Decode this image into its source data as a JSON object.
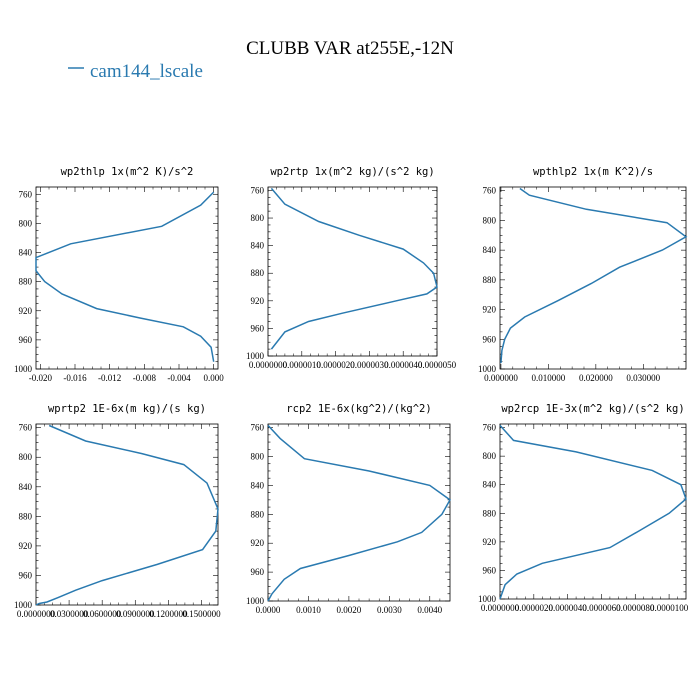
{
  "figure": {
    "title": "CLUBB VAR at255E,-12N",
    "legend": [
      {
        "label": "cam144_lscale",
        "color": "#2a7ab0"
      }
    ]
  },
  "chart_data": [
    {
      "type": "line",
      "title": "wp2thlp  1x(m^2 K)/s^2",
      "xlim": [
        -0.0205,
        0.0005
      ],
      "ylim": [
        1000,
        750
      ],
      "y_ticks": [
        760,
        800,
        840,
        880,
        920,
        960,
        1000
      ],
      "x_ticks": [
        -0.02,
        -0.016,
        -0.012,
        -0.008,
        -0.004,
        0.0
      ],
      "x_tick_labels": [
        "-0.020",
        "-0.016",
        "-0.012",
        "-0.008",
        "-0.004",
        "0.000"
      ],
      "series": [
        {
          "x": [
            0.0,
            -0.0015,
            -0.006,
            -0.0165,
            -0.0205,
            -0.0205,
            -0.0195,
            -0.0175,
            -0.0135,
            -0.0085,
            -0.0035,
            -0.0015,
            -0.0003,
            0.0
          ],
          "y": [
            757,
            775,
            804,
            828,
            847,
            865,
            880,
            897,
            917,
            930,
            942,
            955,
            970,
            990
          ]
        }
      ]
    },
    {
      "type": "line",
      "title": "wp2rtp  1x(m^2 kg)/(s^2 kg)",
      "xlim": [
        0,
        5e-06
      ],
      "ylim": [
        1000,
        755
      ],
      "y_ticks": [
        760,
        800,
        840,
        880,
        920,
        960,
        1000
      ],
      "x_ticks": [
        0,
        1e-06,
        2e-06,
        3e-06,
        4e-06,
        5e-06
      ],
      "x_tick_labels": [
        "0.0000000",
        "0.0000010",
        "0.0000020",
        "0.0000030",
        "0.0000040",
        "0.0000050"
      ],
      "series": [
        {
          "x": [
            1e-07,
            5e-07,
            1.5e-06,
            2.7e-06,
            4e-06,
            4.6e-06,
            4.9e-06,
            5e-06,
            4.7e-06,
            3.8e-06,
            2.2e-06,
            1.2e-06,
            5e-07,
            1e-07
          ],
          "y": [
            757,
            780,
            805,
            825,
            845,
            865,
            880,
            900,
            910,
            920,
            938,
            950,
            965,
            990
          ]
        }
      ]
    },
    {
      "type": "line",
      "title": "wpthlp2  1x(m K^2)/s",
      "xlim": [
        -0.0002,
        0.039
      ],
      "ylim": [
        1000,
        755
      ],
      "y_ticks": [
        760,
        800,
        840,
        880,
        920,
        960,
        1000
      ],
      "x_ticks": [
        0,
        0.01,
        0.02,
        0.03
      ],
      "x_tick_labels": [
        "0.000000",
        "0.010000",
        "0.020000",
        "0.030000"
      ],
      "series": [
        {
          "x": [
            0.004,
            0.006,
            0.018,
            0.035,
            0.039,
            0.034,
            0.025,
            0.019,
            0.012,
            0.005,
            0.002,
            0.0008,
            0.0002,
            0.0
          ],
          "y": [
            757,
            766,
            785,
            803,
            822,
            840,
            863,
            885,
            908,
            930,
            945,
            960,
            975,
            992
          ]
        }
      ]
    },
    {
      "type": "line",
      "title": "wprtp2  1E-6x(m kg)/(s kg)",
      "xlim": [
        0,
        0.165
      ],
      "ylim": [
        1000,
        755
      ],
      "y_ticks": [
        760,
        800,
        840,
        880,
        920,
        960,
        1000
      ],
      "x_ticks": [
        0,
        0.03,
        0.06,
        0.09,
        0.12,
        0.15
      ],
      "x_tick_labels": [
        "0.0000000",
        "0.0300000",
        "0.0600000",
        "0.0900000",
        "0.1200000",
        "0.1500000"
      ],
      "series": [
        {
          "x": [
            0.012,
            0.045,
            0.096,
            0.134,
            0.155,
            0.165,
            0.163,
            0.151,
            0.11,
            0.06,
            0.036,
            0.02,
            0.01,
            0.003,
            0.0
          ],
          "y": [
            757,
            778,
            795,
            810,
            835,
            870,
            900,
            925,
            945,
            967,
            980,
            990,
            996,
            998,
            1000
          ]
        }
      ]
    },
    {
      "type": "line",
      "title": "rcp2  1E-6x(kg^2)/(kg^2)",
      "xlim": [
        0,
        0.0045
      ],
      "ylim": [
        1000,
        755
      ],
      "y_ticks": [
        760,
        800,
        840,
        880,
        920,
        960,
        1000
      ],
      "x_ticks": [
        0,
        0.001,
        0.002,
        0.003,
        0.004
      ],
      "x_tick_labels": [
        "0.0000",
        "0.0010",
        "0.0020",
        "0.0030",
        "0.0040"
      ],
      "series": [
        {
          "x": [
            0.0,
            0.0003,
            0.0009,
            0.0025,
            0.004,
            0.0045,
            0.0043,
            0.0038,
            0.0032,
            0.002,
            0.0008,
            0.0004,
            0.0001,
            0.0
          ],
          "y": [
            757,
            775,
            803,
            820,
            840,
            860,
            880,
            905,
            918,
            937,
            955,
            970,
            990,
            1000
          ]
        }
      ]
    },
    {
      "type": "line",
      "title": "wp2rcp  1E-3x(m^2 kg)/(s^2 kg)",
      "xlim": [
        0,
        1.1e-05
      ],
      "ylim": [
        1000,
        755
      ],
      "y_ticks": [
        760,
        800,
        840,
        880,
        920,
        960,
        1000
      ],
      "x_ticks": [
        0,
        2e-06,
        4e-06,
        6e-06,
        8e-06,
        1e-05
      ],
      "x_tick_labels": [
        "0.0000000",
        "0.0000020",
        "0.0000040",
        "0.0000060",
        "0.0000080",
        "0.0000100"
      ],
      "series": [
        {
          "x": [
            0.0,
            8e-07,
            4.5e-06,
            9e-06,
            1.07e-05,
            1.1e-05,
            1e-05,
            8.2e-06,
            6.5e-06,
            2.5e-06,
            1e-06,
            3e-07,
            0.0
          ],
          "y": [
            757,
            778,
            794,
            820,
            840,
            860,
            880,
            905,
            928,
            950,
            965,
            980,
            1000
          ]
        }
      ]
    }
  ]
}
